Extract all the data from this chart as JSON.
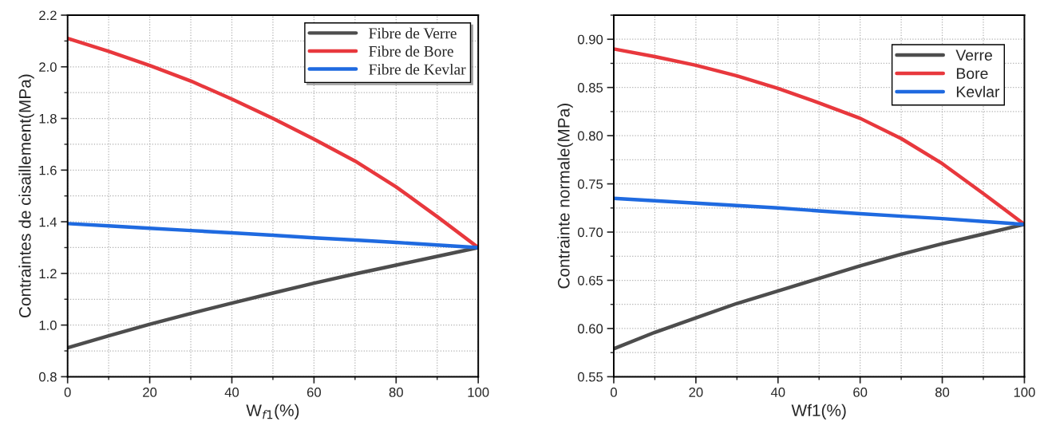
{
  "chart_data": [
    {
      "type": "line",
      "xlabel": "W$_{f1}$(%)",
      "ylabel": "Contraintes de cisaillement(MPa)",
      "x": [
        0,
        10,
        20,
        30,
        40,
        50,
        60,
        70,
        80,
        90,
        100
      ],
      "xlim": [
        0,
        100
      ],
      "xticks": [
        0,
        20,
        40,
        60,
        80,
        100
      ],
      "ylim": [
        0.8,
        2.2
      ],
      "yticks": [
        {
          "value": 0.8,
          "label": "0.8"
        },
        {
          "value": 1.0,
          "label": "1.0"
        },
        1.2,
        1.4,
        1.6,
        1.8,
        {
          "value": 2.0,
          "label": "2.0"
        },
        2.2
      ],
      "grid": true,
      "legend": "top right",
      "marker": "none",
      "line_style": "solid",
      "series": [
        {
          "name": "Fibre de Verre",
          "color": "#4d4d4d",
          "values": [
            0.912,
            0.958,
            1.003,
            1.045,
            1.085,
            1.124,
            1.162,
            1.198,
            1.232,
            1.266,
            1.3
          ]
        },
        {
          "name": "Fibre de Bore",
          "color": "#e8383d",
          "values": [
            2.11,
            2.06,
            2.005,
            1.945,
            1.875,
            1.8,
            1.72,
            1.635,
            1.535,
            1.42,
            1.3
          ]
        },
        {
          "name": "Fibre de Kevlar",
          "color": "#1f6ae0",
          "values": [
            1.393,
            1.384,
            1.375,
            1.366,
            1.357,
            1.348,
            1.338,
            1.329,
            1.32,
            1.31,
            1.3
          ]
        }
      ]
    },
    {
      "type": "line",
      "xlabel": "Wf1(%)",
      "ylabel": "Contrainte normale(MPa)",
      "x": [
        0,
        10,
        20,
        30,
        40,
        50,
        60,
        70,
        80,
        90,
        100
      ],
      "xlim": [
        0,
        100
      ],
      "xticks": [
        0,
        20,
        40,
        60,
        80,
        100
      ],
      "ylim": [
        0.55,
        0.925
      ],
      "yticks": [
        0.55,
        {
          "value": 0.6,
          "label": "0.60"
        },
        0.65,
        {
          "value": 0.7,
          "label": "0.70"
        },
        0.75,
        {
          "value": 0.8,
          "label": "0.80"
        },
        0.85,
        {
          "value": 0.9,
          "label": "0.90"
        }
      ],
      "grid": true,
      "legend": "top right",
      "marker": "none",
      "line_style": "solid",
      "series": [
        {
          "name": "Verre",
          "color": "#4d4d4d",
          "values": [
            0.579,
            0.596,
            0.611,
            0.626,
            0.639,
            0.652,
            0.665,
            0.677,
            0.688,
            0.698,
            0.708
          ]
        },
        {
          "name": "Bore",
          "color": "#e8383d",
          "values": [
            0.89,
            0.882,
            0.873,
            0.862,
            0.849,
            0.834,
            0.818,
            0.797,
            0.771,
            0.74,
            0.708
          ]
        },
        {
          "name": "Kevlar",
          "color": "#1f6ae0",
          "values": [
            0.735,
            0.7325,
            0.73,
            0.7275,
            0.725,
            0.722,
            0.719,
            0.7165,
            0.714,
            0.711,
            0.708
          ]
        }
      ]
    }
  ]
}
